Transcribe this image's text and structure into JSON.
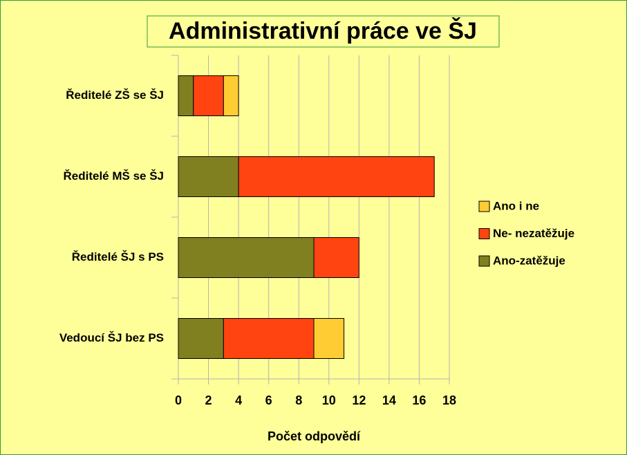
{
  "chart_data": {
    "type": "stacked-barh",
    "title": "Administrativní práce ve ŠJ",
    "categories": [
      "Ředitelé ZŠ se ŠJ",
      "Ředitelé MŠ se ŠJ",
      "Ředitelé ŠJ s PS",
      "Vedoucí ŠJ bez PS"
    ],
    "series": [
      {
        "name": "Ano-zatěžuje",
        "color": "#808020",
        "values": [
          1,
          4,
          9,
          3
        ]
      },
      {
        "name": "Ne- nezatěžuje",
        "color": "#ff4411",
        "values": [
          2,
          13,
          3,
          6
        ]
      },
      {
        "name": "Ano i ne",
        "color": "#ffcc33",
        "values": [
          1,
          0,
          0,
          2
        ]
      }
    ],
    "xlabel": "Počet odpovědí",
    "xlim": [
      0,
      18
    ],
    "xticks": [
      0,
      2,
      4,
      6,
      8,
      10,
      12,
      14,
      16,
      18
    ],
    "grid": true,
    "legend": "right"
  }
}
